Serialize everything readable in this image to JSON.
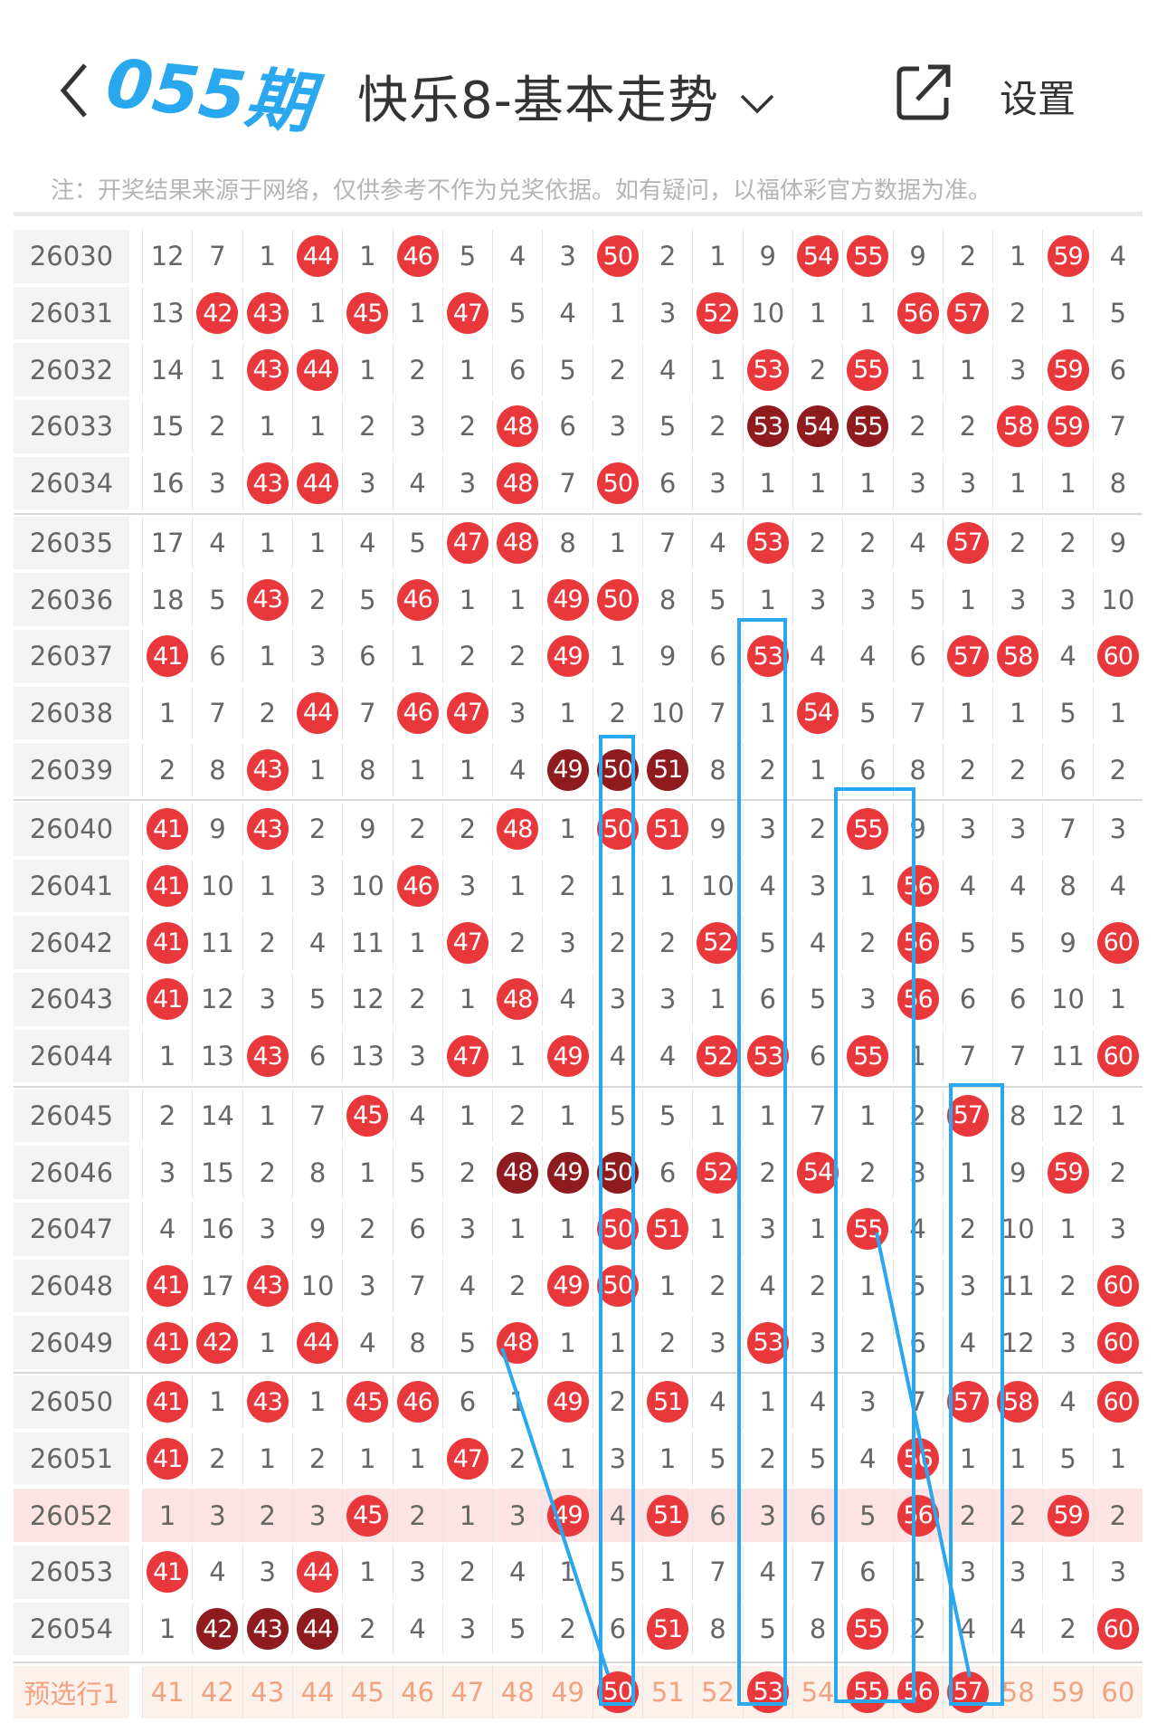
{
  "header": {
    "title": "快乐8-基本走势",
    "settings_label": "设置",
    "icons": {
      "back": "chevron-left-icon",
      "dropdown": "chevron-down-icon",
      "share": "share-icon"
    }
  },
  "note": "注：开奖结果来源于网络，仅供参考不作为兑奖依据。如有疑问，以福体彩官方数据为准。",
  "colors": {
    "ball": "#e9383c",
    "ball_dark": "#8e1c1f",
    "highlight_row": "#fde4e4",
    "predict_row": "#fdf1ec",
    "predict_text": "#f2a27e",
    "annotation": "#2aa8ef"
  },
  "columns": [
    41,
    42,
    43,
    44,
    45,
    46,
    47,
    48,
    49,
    50,
    51,
    52,
    53,
    54,
    55,
    56,
    57,
    58,
    59,
    60
  ],
  "rows": [
    {
      "period": "26030",
      "cells": [
        12,
        7,
        1,
        44,
        1,
        46,
        5,
        4,
        3,
        50,
        2,
        1,
        9,
        54,
        55,
        9,
        2,
        1,
        59,
        4
      ],
      "hits": [
        44,
        46,
        50,
        54,
        55,
        59
      ],
      "dark": []
    },
    {
      "period": "26031",
      "cells": [
        13,
        42,
        43,
        1,
        45,
        1,
        47,
        5,
        4,
        1,
        3,
        52,
        10,
        1,
        1,
        56,
        57,
        2,
        1,
        5
      ],
      "hits": [
        42,
        43,
        45,
        47,
        52,
        56,
        57
      ],
      "dark": []
    },
    {
      "period": "26032",
      "cells": [
        14,
        1,
        43,
        44,
        1,
        2,
        1,
        6,
        5,
        2,
        4,
        1,
        53,
        2,
        55,
        1,
        1,
        3,
        59,
        6
      ],
      "hits": [
        43,
        44,
        53,
        55,
        59
      ],
      "dark": []
    },
    {
      "period": "26033",
      "cells": [
        15,
        2,
        1,
        1,
        2,
        3,
        2,
        48,
        6,
        3,
        5,
        2,
        53,
        54,
        55,
        2,
        2,
        58,
        59,
        7
      ],
      "hits": [
        48,
        53,
        54,
        55,
        58,
        59
      ],
      "dark": [
        53,
        54,
        55
      ]
    },
    {
      "period": "26034",
      "cells": [
        16,
        3,
        43,
        44,
        3,
        4,
        3,
        48,
        7,
        50,
        6,
        3,
        1,
        1,
        1,
        3,
        3,
        1,
        1,
        8
      ],
      "hits": [
        43,
        44,
        48,
        50
      ],
      "dark": []
    },
    {
      "period": "26035",
      "cells": [
        17,
        4,
        1,
        1,
        4,
        5,
        47,
        48,
        8,
        1,
        7,
        4,
        53,
        2,
        2,
        4,
        57,
        2,
        2,
        9
      ],
      "hits": [
        47,
        48,
        53,
        57
      ],
      "dark": []
    },
    {
      "period": "26036",
      "cells": [
        18,
        5,
        43,
        2,
        5,
        46,
        1,
        1,
        49,
        50,
        8,
        5,
        1,
        3,
        3,
        5,
        1,
        3,
        3,
        10
      ],
      "hits": [
        43,
        46,
        49,
        50
      ],
      "dark": []
    },
    {
      "period": "26037",
      "cells": [
        41,
        6,
        1,
        3,
        6,
        1,
        2,
        2,
        49,
        1,
        9,
        6,
        53,
        4,
        4,
        6,
        57,
        58,
        4,
        60
      ],
      "hits": [
        41,
        49,
        53,
        57,
        58,
        60
      ],
      "dark": []
    },
    {
      "period": "26038",
      "cells": [
        1,
        7,
        2,
        44,
        7,
        46,
        47,
        3,
        1,
        2,
        10,
        7,
        1,
        54,
        5,
        7,
        1,
        1,
        5,
        1
      ],
      "hits": [
        44,
        46,
        47,
        54
      ],
      "dark": []
    },
    {
      "period": "26039",
      "cells": [
        2,
        8,
        43,
        1,
        8,
        1,
        1,
        4,
        49,
        50,
        51,
        8,
        2,
        1,
        6,
        8,
        2,
        2,
        6,
        2
      ],
      "hits": [
        43,
        49,
        50,
        51
      ],
      "dark": [
        49,
        50,
        51
      ]
    },
    {
      "period": "26040",
      "cells": [
        41,
        9,
        43,
        2,
        9,
        2,
        2,
        48,
        1,
        50,
        51,
        9,
        3,
        2,
        55,
        9,
        3,
        3,
        7,
        3
      ],
      "hits": [
        41,
        43,
        48,
        50,
        51,
        55
      ],
      "dark": []
    },
    {
      "period": "26041",
      "cells": [
        41,
        10,
        1,
        3,
        10,
        46,
        3,
        1,
        2,
        1,
        1,
        10,
        4,
        3,
        1,
        56,
        4,
        4,
        8,
        4
      ],
      "hits": [
        41,
        46,
        56
      ],
      "dark": []
    },
    {
      "period": "26042",
      "cells": [
        41,
        11,
        2,
        4,
        11,
        1,
        47,
        2,
        3,
        2,
        2,
        52,
        5,
        4,
        2,
        56,
        5,
        5,
        9,
        60
      ],
      "hits": [
        41,
        47,
        52,
        56,
        60
      ],
      "dark": []
    },
    {
      "period": "26043",
      "cells": [
        41,
        12,
        3,
        5,
        12,
        2,
        1,
        48,
        4,
        3,
        3,
        1,
        6,
        5,
        3,
        56,
        6,
        6,
        10,
        1
      ],
      "hits": [
        41,
        48,
        56
      ],
      "dark": []
    },
    {
      "period": "26044",
      "cells": [
        1,
        13,
        43,
        6,
        13,
        3,
        47,
        1,
        49,
        4,
        4,
        52,
        53,
        6,
        55,
        1,
        7,
        7,
        11,
        60
      ],
      "hits": [
        43,
        47,
        49,
        52,
        53,
        55,
        60
      ],
      "dark": []
    },
    {
      "period": "26045",
      "cells": [
        2,
        14,
        1,
        7,
        45,
        4,
        1,
        2,
        1,
        5,
        5,
        1,
        1,
        7,
        1,
        2,
        57,
        8,
        12,
        1
      ],
      "hits": [
        45,
        57
      ],
      "dark": []
    },
    {
      "period": "26046",
      "cells": [
        3,
        15,
        2,
        8,
        1,
        5,
        2,
        48,
        49,
        50,
        6,
        52,
        2,
        54,
        2,
        3,
        1,
        9,
        59,
        2
      ],
      "hits": [
        48,
        49,
        50,
        52,
        54,
        59
      ],
      "dark": [
        48,
        49,
        50
      ]
    },
    {
      "period": "26047",
      "cells": [
        4,
        16,
        3,
        9,
        2,
        6,
        3,
        1,
        1,
        50,
        51,
        1,
        3,
        1,
        55,
        4,
        2,
        10,
        1,
        3
      ],
      "hits": [
        50,
        51,
        55
      ],
      "dark": []
    },
    {
      "period": "26048",
      "cells": [
        41,
        17,
        43,
        10,
        3,
        7,
        4,
        2,
        49,
        50,
        1,
        2,
        4,
        2,
        1,
        5,
        3,
        11,
        2,
        60
      ],
      "hits": [
        41,
        43,
        49,
        50,
        60
      ],
      "dark": []
    },
    {
      "period": "26049",
      "cells": [
        41,
        42,
        1,
        44,
        4,
        8,
        5,
        48,
        1,
        1,
        2,
        3,
        53,
        3,
        2,
        6,
        4,
        12,
        3,
        60
      ],
      "hits": [
        41,
        42,
        44,
        48,
        53,
        60
      ],
      "dark": []
    },
    {
      "period": "26050",
      "cells": [
        41,
        1,
        43,
        1,
        45,
        46,
        6,
        1,
        49,
        2,
        51,
        4,
        1,
        4,
        3,
        7,
        57,
        58,
        4,
        60
      ],
      "hits": [
        41,
        43,
        45,
        46,
        49,
        51,
        57,
        58,
        60
      ],
      "dark": []
    },
    {
      "period": "26051",
      "cells": [
        41,
        2,
        1,
        2,
        1,
        1,
        47,
        2,
        1,
        3,
        1,
        5,
        2,
        5,
        4,
        56,
        1,
        1,
        5,
        1
      ],
      "hits": [
        41,
        47,
        56
      ],
      "dark": []
    },
    {
      "period": "26052",
      "cells": [
        1,
        3,
        2,
        3,
        45,
        2,
        1,
        3,
        49,
        4,
        51,
        6,
        3,
        6,
        5,
        56,
        2,
        2,
        59,
        2
      ],
      "hits": [
        45,
        49,
        51,
        56,
        59
      ],
      "dark": [],
      "highlight": true
    },
    {
      "period": "26053",
      "cells": [
        41,
        4,
        3,
        44,
        1,
        3,
        2,
        4,
        1,
        5,
        1,
        7,
        4,
        7,
        6,
        1,
        3,
        3,
        1,
        3
      ],
      "hits": [
        41,
        44
      ],
      "dark": []
    },
    {
      "period": "26054",
      "cells": [
        1,
        42,
        43,
        44,
        2,
        4,
        3,
        5,
        2,
        6,
        51,
        8,
        5,
        8,
        55,
        2,
        4,
        4,
        2,
        60
      ],
      "hits": [
        42,
        43,
        44,
        51,
        55,
        60
      ],
      "dark": [
        42,
        43,
        44
      ]
    }
  ],
  "predict_row": {
    "label": "预选行1",
    "cells": [
      41,
      42,
      43,
      44,
      45,
      46,
      47,
      48,
      49,
      50,
      51,
      52,
      53,
      54,
      55,
      56,
      57,
      58,
      59,
      60
    ],
    "hits": [
      50,
      53,
      55,
      56,
      57
    ]
  },
  "watermark": "055期"
}
